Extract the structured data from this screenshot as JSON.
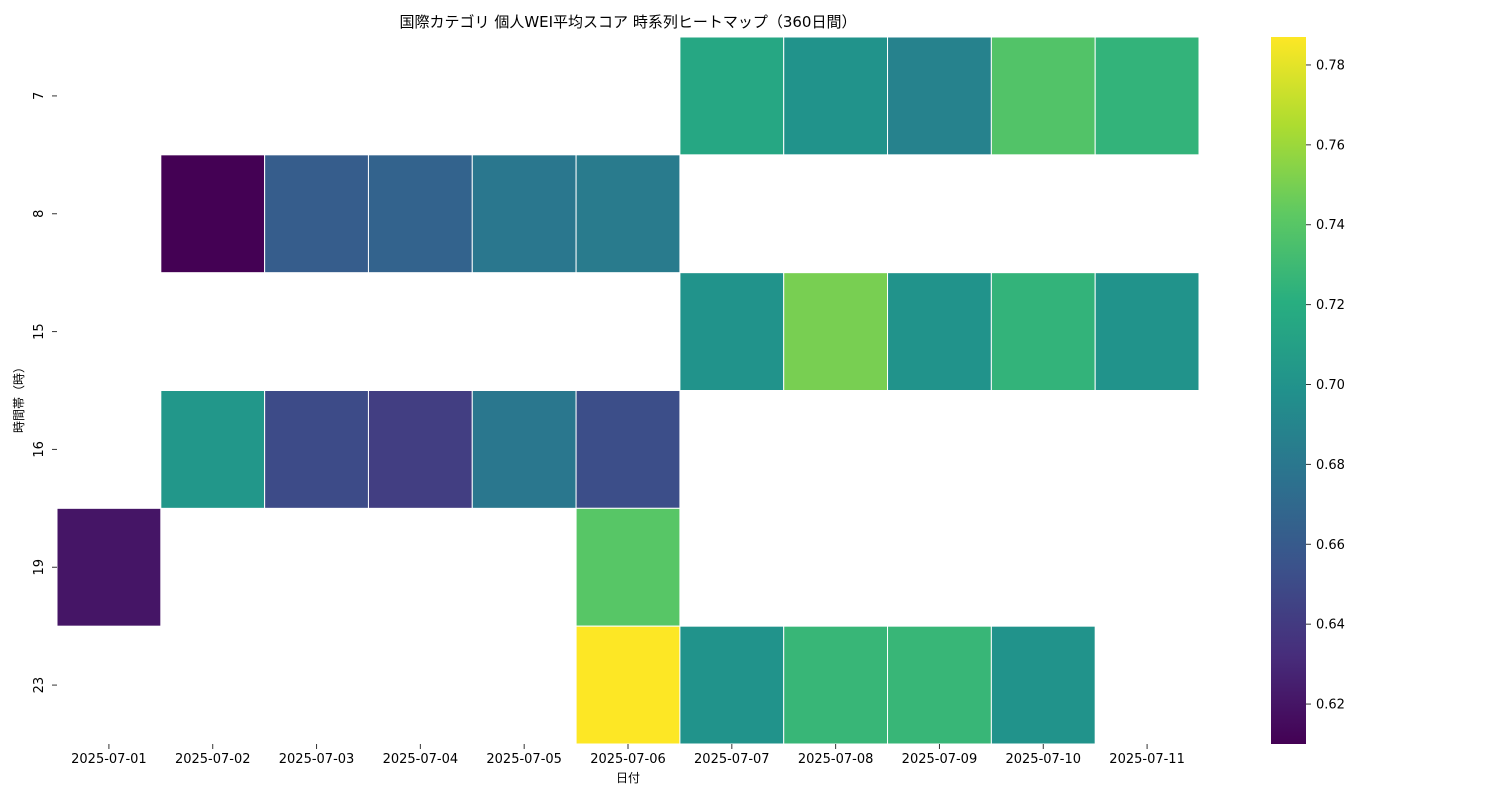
{
  "chart_data": {
    "type": "heatmap",
    "title": "国際カテゴリ 個人WEI平均スコア 時系列ヒートマップ（360日間）",
    "xlabel": "日付",
    "ylabel": "時間帯（時）",
    "x_categories": [
      "2025-07-01",
      "2025-07-02",
      "2025-07-03",
      "2025-07-04",
      "2025-07-05",
      "2025-07-06",
      "2025-07-07",
      "2025-07-08",
      "2025-07-09",
      "2025-07-10",
      "2025-07-11"
    ],
    "y_categories": [
      "7",
      "8",
      "15",
      "16",
      "19",
      "23"
    ],
    "values": [
      [
        null,
        null,
        null,
        null,
        null,
        null,
        0.715,
        0.7,
        0.688,
        0.738,
        0.725
      ],
      [
        null,
        0.61,
        0.662,
        0.666,
        0.68,
        0.683,
        null,
        null,
        null,
        null,
        null
      ],
      [
        null,
        null,
        null,
        null,
        null,
        null,
        0.7,
        0.75,
        0.7,
        0.725,
        0.7
      ],
      [
        null,
        0.703,
        0.65,
        0.642,
        0.68,
        0.652,
        null,
        null,
        null,
        null,
        null
      ],
      [
        0.62,
        null,
        null,
        null,
        null,
        0.74,
        null,
        null,
        null,
        null,
        null
      ],
      [
        null,
        null,
        null,
        null,
        null,
        0.787,
        0.7,
        0.727,
        0.727,
        0.7,
        null
      ]
    ],
    "colorscale": "viridis",
    "zlim": [
      0.61,
      0.787
    ],
    "colorbar_ticks": [
      "0.62",
      "0.64",
      "0.66",
      "0.68",
      "0.70",
      "0.72",
      "0.74",
      "0.76",
      "0.78"
    ],
    "grid": false
  }
}
